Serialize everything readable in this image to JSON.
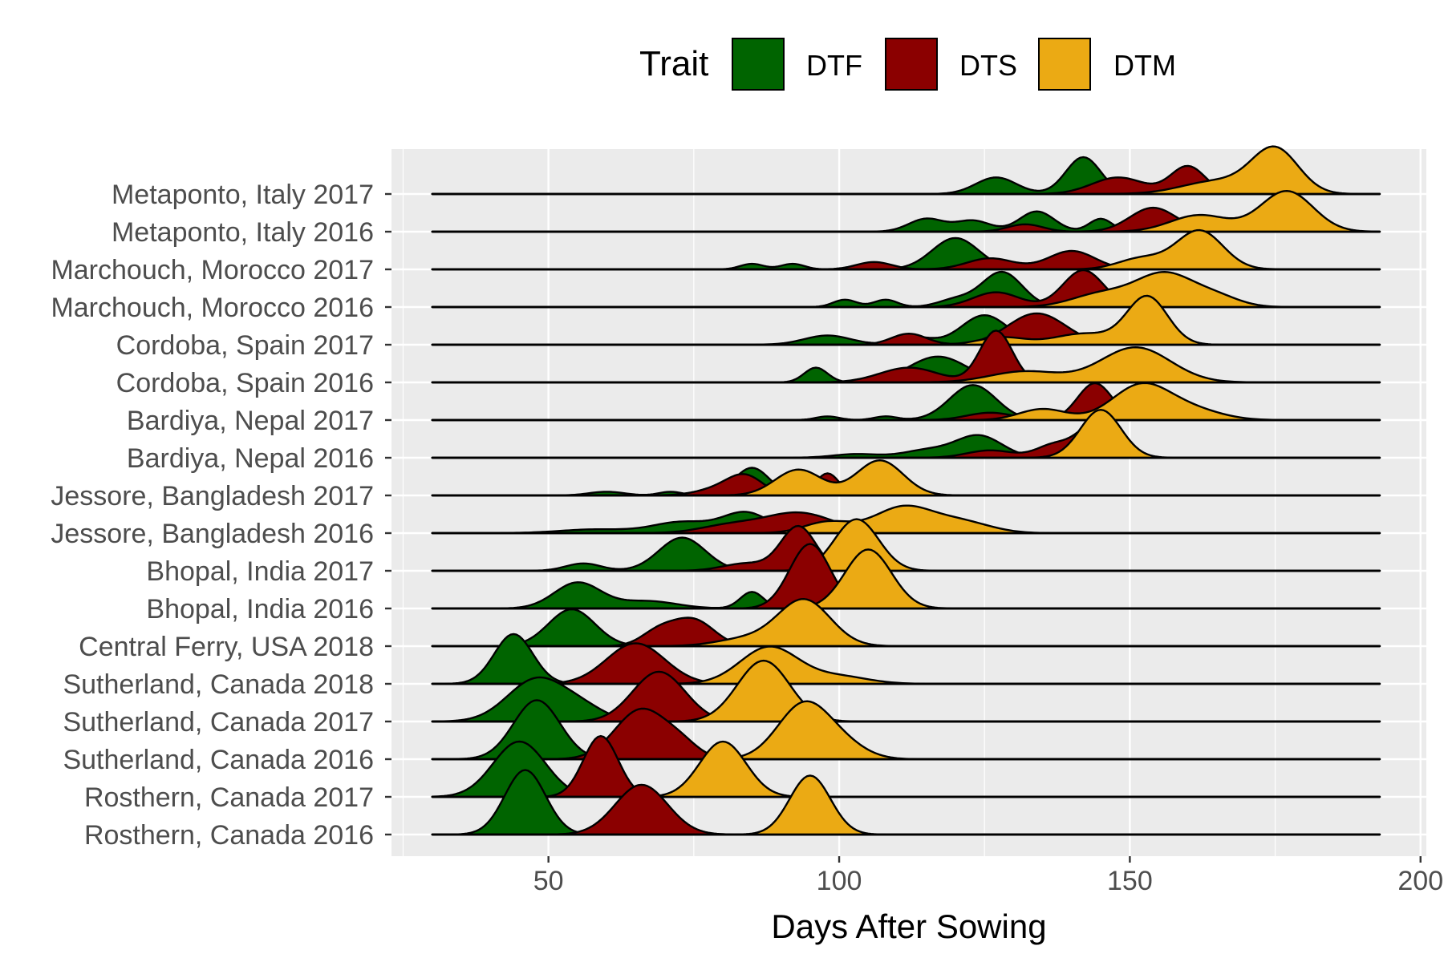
{
  "chart_data": {
    "type": "ridgeline",
    "xlabel": "Days After Sowing",
    "xlim": [
      23,
      201
    ],
    "xticks": [
      50,
      100,
      150,
      200
    ],
    "legend": {
      "title": "Trait",
      "position": "top"
    },
    "series": [
      {
        "name": "DTF",
        "color": "#006400"
      },
      {
        "name": "DTS",
        "color": "#8B0000"
      },
      {
        "name": "DTM",
        "color": "#EBAA14"
      }
    ],
    "rows": [
      {
        "label": "Metaponto, Italy 2017",
        "traits": {
          "DTF": [
            [
              127,
              0.45,
              3.5
            ],
            [
              142,
              1.0,
              3.0
            ]
          ],
          "DTS": [
            [
              148,
              0.45,
              4.5
            ],
            [
              160,
              0.75,
              3.0
            ]
          ],
          "DTM": [
            [
              165,
              0.35,
              6.0
            ],
            [
              175,
              1.2,
              4.0
            ]
          ]
        }
      },
      {
        "label": "Metaponto, Italy 2016",
        "traits": {
          "DTF": [
            [
              115,
              0.35,
              3.0
            ],
            [
              123,
              0.3,
              3.0
            ],
            [
              134,
              0.55,
              3.0
            ],
            [
              145,
              0.35,
              2.0
            ]
          ],
          "DTS": [
            [
              132,
              0.2,
              3.0
            ],
            [
              154,
              0.65,
              4.0
            ],
            [
              167,
              0.3,
              3.0
            ]
          ],
          "DTM": [
            [
              162,
              0.45,
              5.0
            ],
            [
              177,
              1.1,
              4.5
            ]
          ]
        }
      },
      {
        "label": "Marchouch, Morocco 2017",
        "traits": {
          "DTF": [
            [
              85,
              0.15,
              2.0
            ],
            [
              92,
              0.15,
              2.0
            ],
            [
              120,
              0.85,
              4.0
            ]
          ],
          "DTS": [
            [
              106,
              0.2,
              3.0
            ],
            [
              126,
              0.3,
              4.0
            ],
            [
              140,
              0.5,
              4.0
            ]
          ],
          "DTM": [
            [
              152,
              0.3,
              4.0
            ],
            [
              162,
              1.05,
              4.0
            ]
          ]
        }
      },
      {
        "label": "Marchouch, Morocco 2016",
        "traits": {
          "DTF": [
            [
              101,
              0.2,
              2.0
            ],
            [
              108,
              0.2,
              2.0
            ],
            [
              120,
              0.2,
              3.0
            ],
            [
              128,
              0.95,
              3.5
            ]
          ],
          "DTS": [
            [
              127,
              0.4,
              4.0
            ],
            [
              142,
              1.0,
              3.5
            ]
          ],
          "DTM": [
            [
              145,
              0.35,
              5.0
            ],
            [
              156,
              0.9,
              5.0
            ],
            [
              165,
              0.25,
              4.0
            ]
          ]
        }
      },
      {
        "label": "Cordoba, Spain 2017",
        "traits": {
          "DTF": [
            [
              98,
              0.25,
              4.0
            ],
            [
              113,
              0.2,
              3.0
            ],
            [
              125,
              0.8,
              4.0
            ]
          ],
          "DTS": [
            [
              112,
              0.3,
              3.0
            ],
            [
              134,
              0.85,
              5.0
            ]
          ],
          "DTM": [
            [
              128,
              0.2,
              4.0
            ],
            [
              142,
              0.3,
              5.0
            ],
            [
              153,
              1.3,
              3.5
            ]
          ]
        }
      },
      {
        "label": "Cordoba, Spain 2016",
        "traits": {
          "DTF": [
            [
              96,
              0.4,
              2.0
            ],
            [
              117,
              0.7,
              5.0
            ]
          ],
          "DTS": [
            [
              112,
              0.4,
              5.0
            ],
            [
              127,
              1.4,
              2.8
            ]
          ],
          "DTM": [
            [
              132,
              0.3,
              6.0
            ],
            [
              151,
              0.95,
              6.0
            ]
          ]
        }
      },
      {
        "label": "Bardiya, Nepal 2017",
        "traits": {
          "DTF": [
            [
              98,
              0.1,
              2.0
            ],
            [
              108,
              0.1,
              2.0
            ],
            [
              123,
              0.95,
              4.0
            ]
          ],
          "DTS": [
            [
              126,
              0.2,
              4.0
            ],
            [
              144,
              1.0,
              3.0
            ]
          ],
          "DTM": [
            [
              135,
              0.3,
              4.0
            ],
            [
              152,
              0.95,
              5.0
            ],
            [
              161,
              0.25,
              5.0
            ]
          ]
        }
      },
      {
        "label": "Bardiya, Nepal 2016",
        "traits": {
          "DTF": [
            [
              103,
              0.1,
              4.0
            ],
            [
              115,
              0.2,
              4.0
            ],
            [
              124,
              0.6,
              4.0
            ]
          ],
          "DTS": [
            [
              126,
              0.2,
              4.0
            ],
            [
              137,
              0.35,
              3.0
            ],
            [
              144,
              0.9,
              3.0
            ]
          ],
          "DTM": [
            [
              145,
              1.3,
              3.5
            ]
          ]
        }
      },
      {
        "label": "Jessore, Bangladesh 2017",
        "traits": {
          "DTF": [
            [
              60,
              0.1,
              3.0
            ],
            [
              71,
              0.1,
              2.0
            ],
            [
              85,
              0.75,
              3.0
            ]
          ],
          "DTS": [
            [
              80,
              0.2,
              4.0
            ],
            [
              84,
              0.45,
              3.0
            ],
            [
              98,
              0.6,
              2.0
            ]
          ],
          "DTM": [
            [
              93,
              0.7,
              4.0
            ],
            [
              107,
              0.95,
              4.0
            ]
          ]
        }
      },
      {
        "label": "Jessore, Bangladesh 2016",
        "traits": {
          "DTF": [
            [
              58,
              0.1,
              6.0
            ],
            [
              73,
              0.3,
              5.0
            ],
            [
              84,
              0.55,
              4.0
            ]
          ],
          "DTS": [
            [
              81,
              0.2,
              5.0
            ],
            [
              93,
              0.55,
              6.0
            ]
          ],
          "DTM": [
            [
              98,
              0.3,
              4.0
            ],
            [
              111,
              0.7,
              5.0
            ],
            [
              121,
              0.3,
              5.0
            ]
          ]
        }
      },
      {
        "label": "Bhopal, India 2017",
        "traits": {
          "DTF": [
            [
              56,
              0.2,
              3.0
            ],
            [
              73,
              0.9,
              4.0
            ]
          ],
          "DTS": [
            [
              84,
              0.2,
              4.0
            ],
            [
              93,
              1.2,
              3.0
            ]
          ],
          "DTM": [
            [
              103,
              1.4,
              3.8
            ]
          ]
        }
      },
      {
        "label": "Bhopal, India 2016",
        "traits": {
          "DTF": [
            [
              55,
              0.7,
              4.0
            ],
            [
              67,
              0.2,
              5.0
            ],
            [
              85,
              0.45,
              2.0
            ]
          ],
          "DTS": [
            [
              95,
              1.75,
              3.5
            ]
          ],
          "DTM": [
            [
              105,
              1.6,
              4.0
            ]
          ]
        }
      },
      {
        "label": "Central Ferry, USA 2018",
        "traits": {
          "DTF": [
            [
              54,
              1.0,
              4.0
            ]
          ],
          "DTS": [
            [
              69,
              0.4,
              3.0
            ],
            [
              75,
              0.7,
              3.5
            ]
          ],
          "DTM": [
            [
              94,
              1.25,
              4.5
            ],
            [
              84,
              0.2,
              5.0
            ]
          ]
        }
      },
      {
        "label": "Sutherland, Canada 2018",
        "traits": {
          "DTF": [
            [
              44,
              1.35,
              3.3
            ]
          ],
          "DTS": [
            [
              65,
              1.1,
              5.0
            ]
          ],
          "DTM": [
            [
              88,
              1.0,
              5.0
            ],
            [
              100,
              0.2,
              5.0
            ]
          ]
        }
      },
      {
        "label": "Sutherland, Canada 2017",
        "traits": {
          "DTF": [
            [
              48,
              1.15,
              5.0
            ],
            [
              56,
              0.3,
              4.0
            ]
          ],
          "DTS": [
            [
              69,
              1.35,
              4.5
            ]
          ],
          "DTM": [
            [
              87,
              1.65,
              4.5
            ]
          ]
        }
      },
      {
        "label": "Sutherland, Canada 2016",
        "traits": {
          "DTF": [
            [
              48,
              1.6,
              4.0
            ]
          ],
          "DTS": [
            [
              66,
              1.35,
              4.5
            ],
            [
              73,
              0.3,
              3.0
            ]
          ],
          "DTM": [
            [
              94,
              1.5,
              4.5
            ],
            [
              101,
              0.3,
              4.0
            ]
          ]
        }
      },
      {
        "label": "Rosthern, Canada 2017",
        "traits": {
          "DTF": [
            [
              45,
              1.5,
              4.5
            ]
          ],
          "DTS": [
            [
              59,
              1.65,
              3.0
            ]
          ],
          "DTM": [
            [
              80,
              1.5,
              4.0
            ]
          ]
        }
      },
      {
        "label": "Rosthern, Canada 2016",
        "traits": {
          "DTF": [
            [
              46,
              1.75,
              3.5
            ]
          ],
          "DTS": [
            [
              66,
              1.35,
              4.5
            ]
          ],
          "DTM": [
            [
              95,
              1.6,
              3.5
            ]
          ]
        }
      }
    ]
  }
}
